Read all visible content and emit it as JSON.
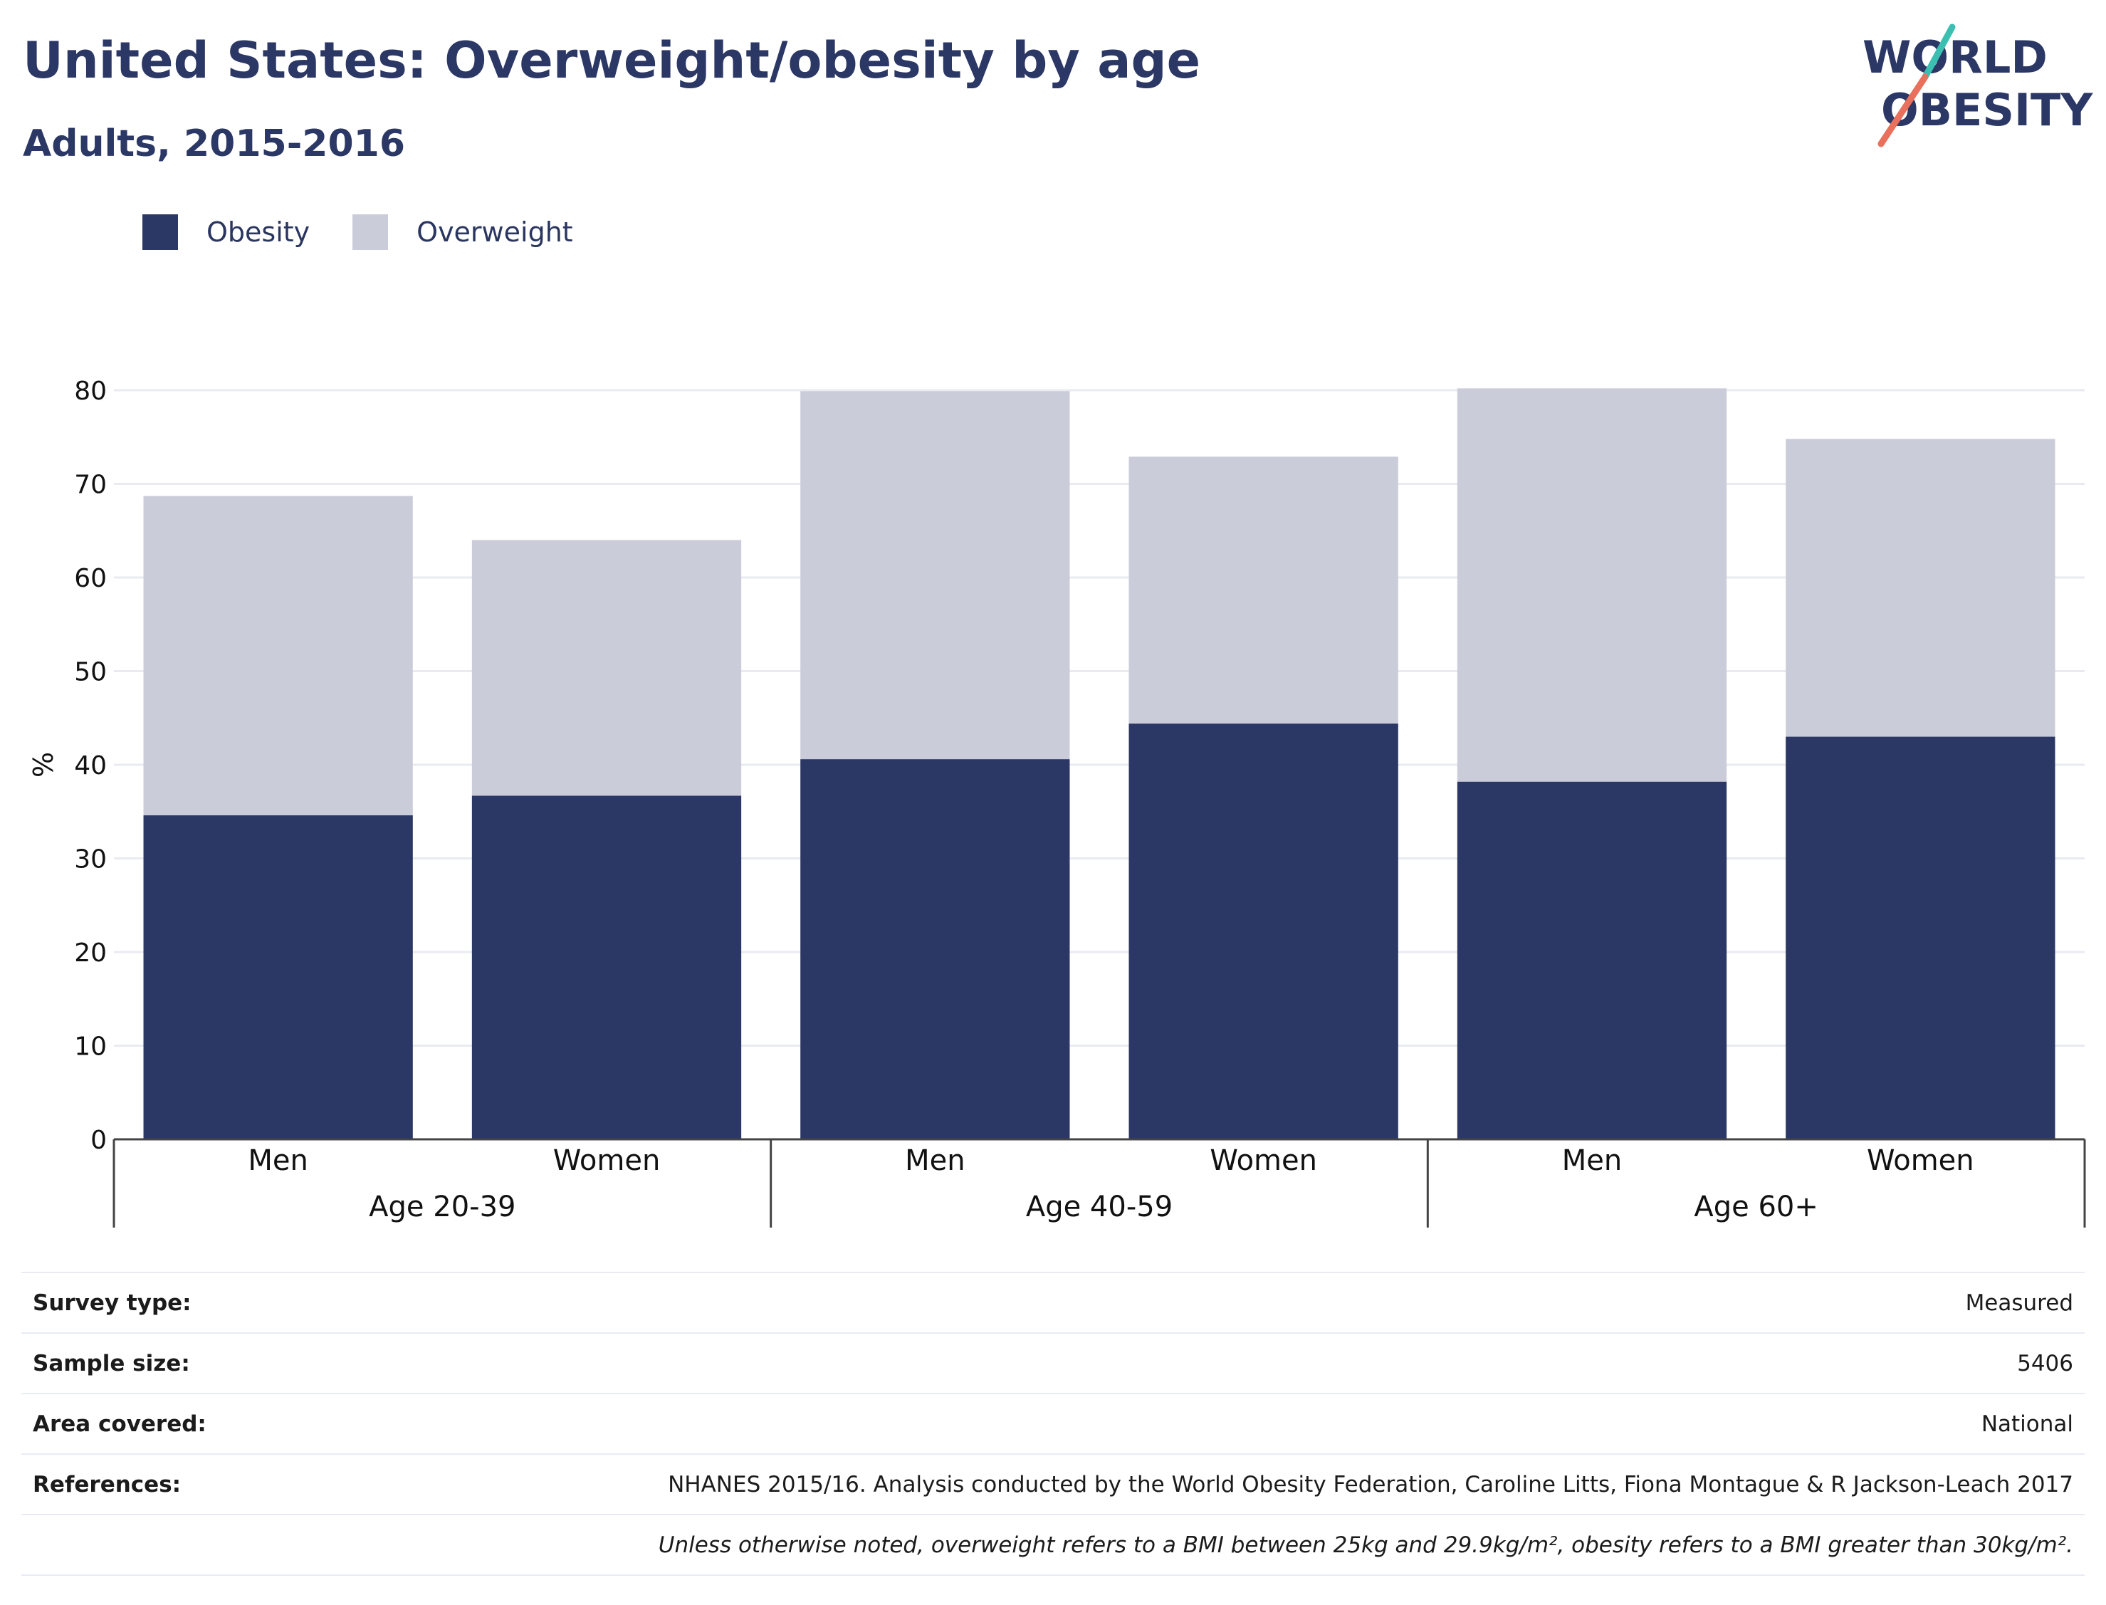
{
  "header": {
    "title": "United States: Overweight/obesity by age",
    "subtitle": "Adults, 2015-2016"
  },
  "logo": {
    "line1": "WORLD",
    "line2": "OBESITY",
    "text_color": "#2b3764",
    "slash_colors": [
      "#3bbfb0",
      "#e8705c"
    ]
  },
  "legend": {
    "items": [
      {
        "label": "Obesity",
        "color": "#2b3764"
      },
      {
        "label": "Overweight",
        "color": "#cbccd9"
      }
    ]
  },
  "chart_data": {
    "type": "bar",
    "stacked": true,
    "ylabel": "%",
    "ylim": [
      0,
      80
    ],
    "yticks": [
      0,
      10,
      20,
      30,
      40,
      50,
      60,
      70,
      80
    ],
    "grid": true,
    "legend_position": "top-left",
    "groups": [
      {
        "label": "Age 20-39",
        "categories": [
          "Men",
          "Women"
        ]
      },
      {
        "label": "Age 40-59",
        "categories": [
          "Men",
          "Women"
        ]
      },
      {
        "label": "Age 60+",
        "categories": [
          "Men",
          "Women"
        ]
      }
    ],
    "series": [
      {
        "name": "Obesity",
        "color": "#2b3764",
        "values": [
          34.6,
          36.7,
          40.6,
          44.4,
          38.2,
          43.0
        ]
      },
      {
        "name": "Overweight",
        "color": "#cbccd9",
        "values": [
          34.1,
          27.3,
          39.3,
          28.5,
          42.0,
          31.8
        ]
      }
    ]
  },
  "info": {
    "rows": [
      {
        "label": "Survey type:",
        "value": "Measured"
      },
      {
        "label": "Sample size:",
        "value": "5406"
      },
      {
        "label": "Area covered:",
        "value": "National"
      },
      {
        "label": "References:",
        "value": "NHANES 2015/16. Analysis conducted by the World Obesity Federation, Caroline Litts, Fiona Montague & R Jackson-Leach 2017"
      }
    ],
    "note": "Unless otherwise noted, overweight refers to a BMI between 25kg and 29.9kg/m², obesity refers to a BMI greater than 30kg/m²."
  }
}
